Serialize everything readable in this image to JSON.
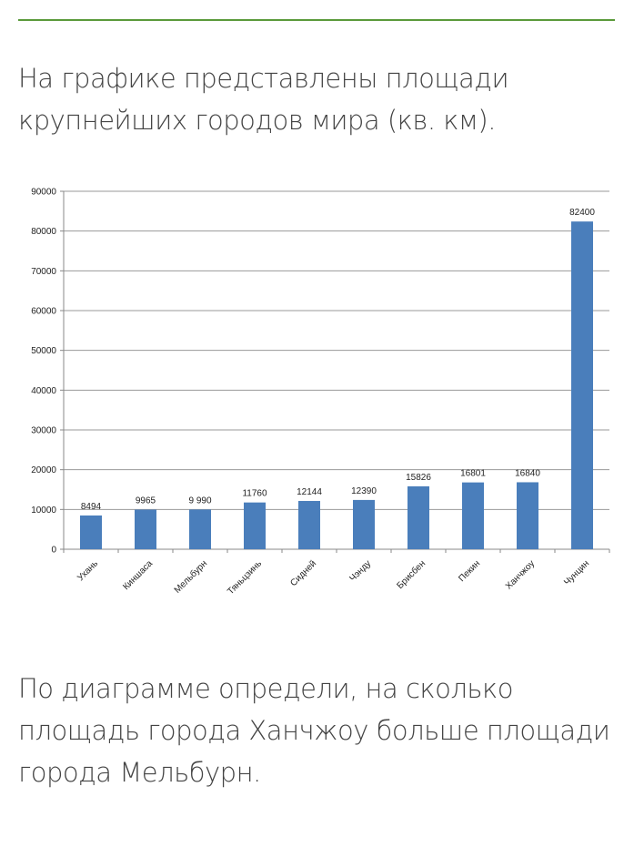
{
  "intro_text": "На графике представлены площади крупнейших городов мира (кв. км).",
  "question_text": "По диаграмме определи, на сколько площадь города Ханчжоу больше площади города Мельбурн.",
  "chart_data": {
    "type": "bar",
    "title": "",
    "xlabel": "",
    "ylabel": "",
    "categories": [
      "Ухань",
      "Киншаса",
      "Мельбурн",
      "Тяньцзинь",
      "Сидней",
      "Чэнду",
      "Брисбен",
      "Пекин",
      "Ханчжоу",
      "Чунцин"
    ],
    "values": [
      8494,
      9965,
      9990,
      11760,
      12144,
      12390,
      15826,
      16801,
      16840,
      82400
    ],
    "data_labels": [
      "8494",
      "9965",
      "9 990",
      "11760",
      "12144",
      "12390",
      "15826",
      "16801",
      "16840",
      "82400"
    ],
    "ylim": [
      0,
      90000
    ],
    "yticks": [
      "0",
      "10000",
      "20000",
      "30000",
      "40000",
      "50000",
      "60000",
      "70000",
      "80000",
      "90000"
    ],
    "grid": true,
    "bar_color": "#4a7ebb"
  }
}
